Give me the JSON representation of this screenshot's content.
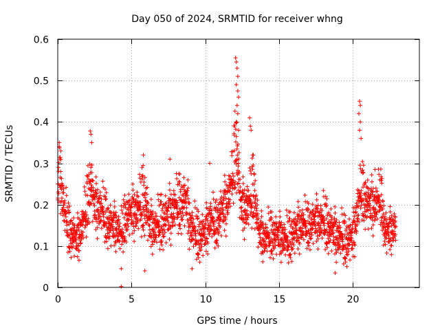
{
  "chart_data": {
    "type": "scatter",
    "title": "Day 050 of 2024, SRMTID for receiver whng",
    "xlabel": "GPS time / hours",
    "ylabel": "SRMTID / TECUs",
    "xlim": [
      0,
      24.5
    ],
    "ylim": [
      0,
      0.6
    ],
    "xticks": [
      0,
      5,
      10,
      15,
      20
    ],
    "xtick_labels": [
      "0",
      "5",
      "10",
      "15",
      "20"
    ],
    "yticks": [
      0,
      0.1,
      0.2,
      0.3,
      0.4,
      0.5,
      0.6
    ],
    "ytick_labels": [
      "0",
      "0.1",
      "0.2",
      "0.3",
      "0.4",
      "0.5",
      "0.6"
    ],
    "grid": true,
    "marker": "+",
    "series_color": "#ff0000",
    "x_range_of_data": [
      0,
      22.9
    ],
    "envelope": [
      [
        0.0,
        0.22,
        0.26
      ],
      [
        0.15,
        0.24,
        0.32
      ],
      [
        0.4,
        0.16,
        0.22
      ],
      [
        0.7,
        0.12,
        0.16
      ],
      [
        1.0,
        0.11,
        0.14
      ],
      [
        1.3,
        0.1,
        0.13
      ],
      [
        1.6,
        0.12,
        0.16
      ],
      [
        1.9,
        0.15,
        0.2
      ],
      [
        2.2,
        0.21,
        0.3
      ],
      [
        2.5,
        0.17,
        0.22
      ],
      [
        2.8,
        0.16,
        0.22
      ],
      [
        3.1,
        0.15,
        0.2
      ],
      [
        3.5,
        0.13,
        0.17
      ],
      [
        4.0,
        0.13,
        0.16
      ],
      [
        4.3,
        0.1,
        0.14
      ],
      [
        4.6,
        0.15,
        0.19
      ],
      [
        5.0,
        0.16,
        0.2
      ],
      [
        5.5,
        0.15,
        0.22
      ],
      [
        5.9,
        0.17,
        0.26
      ],
      [
        6.2,
        0.13,
        0.17
      ],
      [
        6.6,
        0.12,
        0.16
      ],
      [
        7.0,
        0.13,
        0.18
      ],
      [
        7.5,
        0.14,
        0.2
      ],
      [
        7.9,
        0.16,
        0.22
      ],
      [
        8.3,
        0.17,
        0.23
      ],
      [
        8.7,
        0.18,
        0.24
      ],
      [
        9.0,
        0.12,
        0.17
      ],
      [
        9.5,
        0.1,
        0.14
      ],
      [
        10.0,
        0.11,
        0.15
      ],
      [
        10.3,
        0.14,
        0.19
      ],
      [
        10.7,
        0.13,
        0.16
      ],
      [
        11.0,
        0.15,
        0.2
      ],
      [
        11.4,
        0.17,
        0.23
      ],
      [
        11.8,
        0.22,
        0.28
      ],
      [
        12.1,
        0.28,
        0.42
      ],
      [
        12.4,
        0.17,
        0.22
      ],
      [
        12.7,
        0.16,
        0.22
      ],
      [
        13.0,
        0.16,
        0.24
      ],
      [
        13.3,
        0.2,
        0.28
      ],
      [
        13.6,
        0.12,
        0.15
      ],
      [
        14.0,
        0.1,
        0.13
      ],
      [
        14.5,
        0.11,
        0.14
      ],
      [
        15.0,
        0.11,
        0.14
      ],
      [
        15.5,
        0.09,
        0.13
      ],
      [
        16.0,
        0.11,
        0.15
      ],
      [
        16.5,
        0.13,
        0.17
      ],
      [
        17.0,
        0.13,
        0.16
      ],
      [
        17.5,
        0.14,
        0.18
      ],
      [
        18.0,
        0.13,
        0.18
      ],
      [
        18.5,
        0.12,
        0.16
      ],
      [
        19.0,
        0.1,
        0.14
      ],
      [
        19.5,
        0.09,
        0.13
      ],
      [
        20.0,
        0.1,
        0.14
      ],
      [
        20.3,
        0.15,
        0.22
      ],
      [
        20.6,
        0.2,
        0.26
      ],
      [
        21.0,
        0.17,
        0.23
      ],
      [
        21.5,
        0.17,
        0.22
      ],
      [
        21.9,
        0.19,
        0.24
      ],
      [
        22.2,
        0.11,
        0.15
      ],
      [
        22.5,
        0.12,
        0.15
      ],
      [
        22.9,
        0.13,
        0.16
      ]
    ],
    "spikes": [
      [
        0.1,
        0.34
      ],
      [
        0.2,
        0.33
      ],
      [
        2.2,
        0.378
      ],
      [
        2.25,
        0.37
      ],
      [
        2.3,
        0.35
      ],
      [
        4.3,
        0.002
      ],
      [
        4.3,
        0.045
      ],
      [
        5.8,
        0.32
      ],
      [
        7.6,
        0.31
      ],
      [
        10.3,
        0.3
      ],
      [
        12.05,
        0.555
      ],
      [
        12.1,
        0.545
      ],
      [
        12.15,
        0.53
      ],
      [
        12.2,
        0.51
      ],
      [
        12.1,
        0.49
      ],
      [
        12.2,
        0.475
      ],
      [
        12.25,
        0.46
      ],
      [
        12.15,
        0.44
      ],
      [
        12.2,
        0.42
      ],
      [
        12.1,
        0.4
      ],
      [
        12.25,
        0.38
      ],
      [
        13.0,
        0.41
      ],
      [
        13.05,
        0.39
      ],
      [
        13.1,
        0.38
      ],
      [
        13.2,
        0.32
      ],
      [
        20.45,
        0.45
      ],
      [
        20.5,
        0.44
      ],
      [
        20.4,
        0.42
      ],
      [
        20.5,
        0.4
      ],
      [
        20.45,
        0.38
      ],
      [
        20.55,
        0.36
      ],
      [
        21.5,
        0.285
      ],
      [
        5.9,
        0.04
      ],
      [
        9.1,
        0.045
      ],
      [
        18.8,
        0.035
      ]
    ]
  }
}
